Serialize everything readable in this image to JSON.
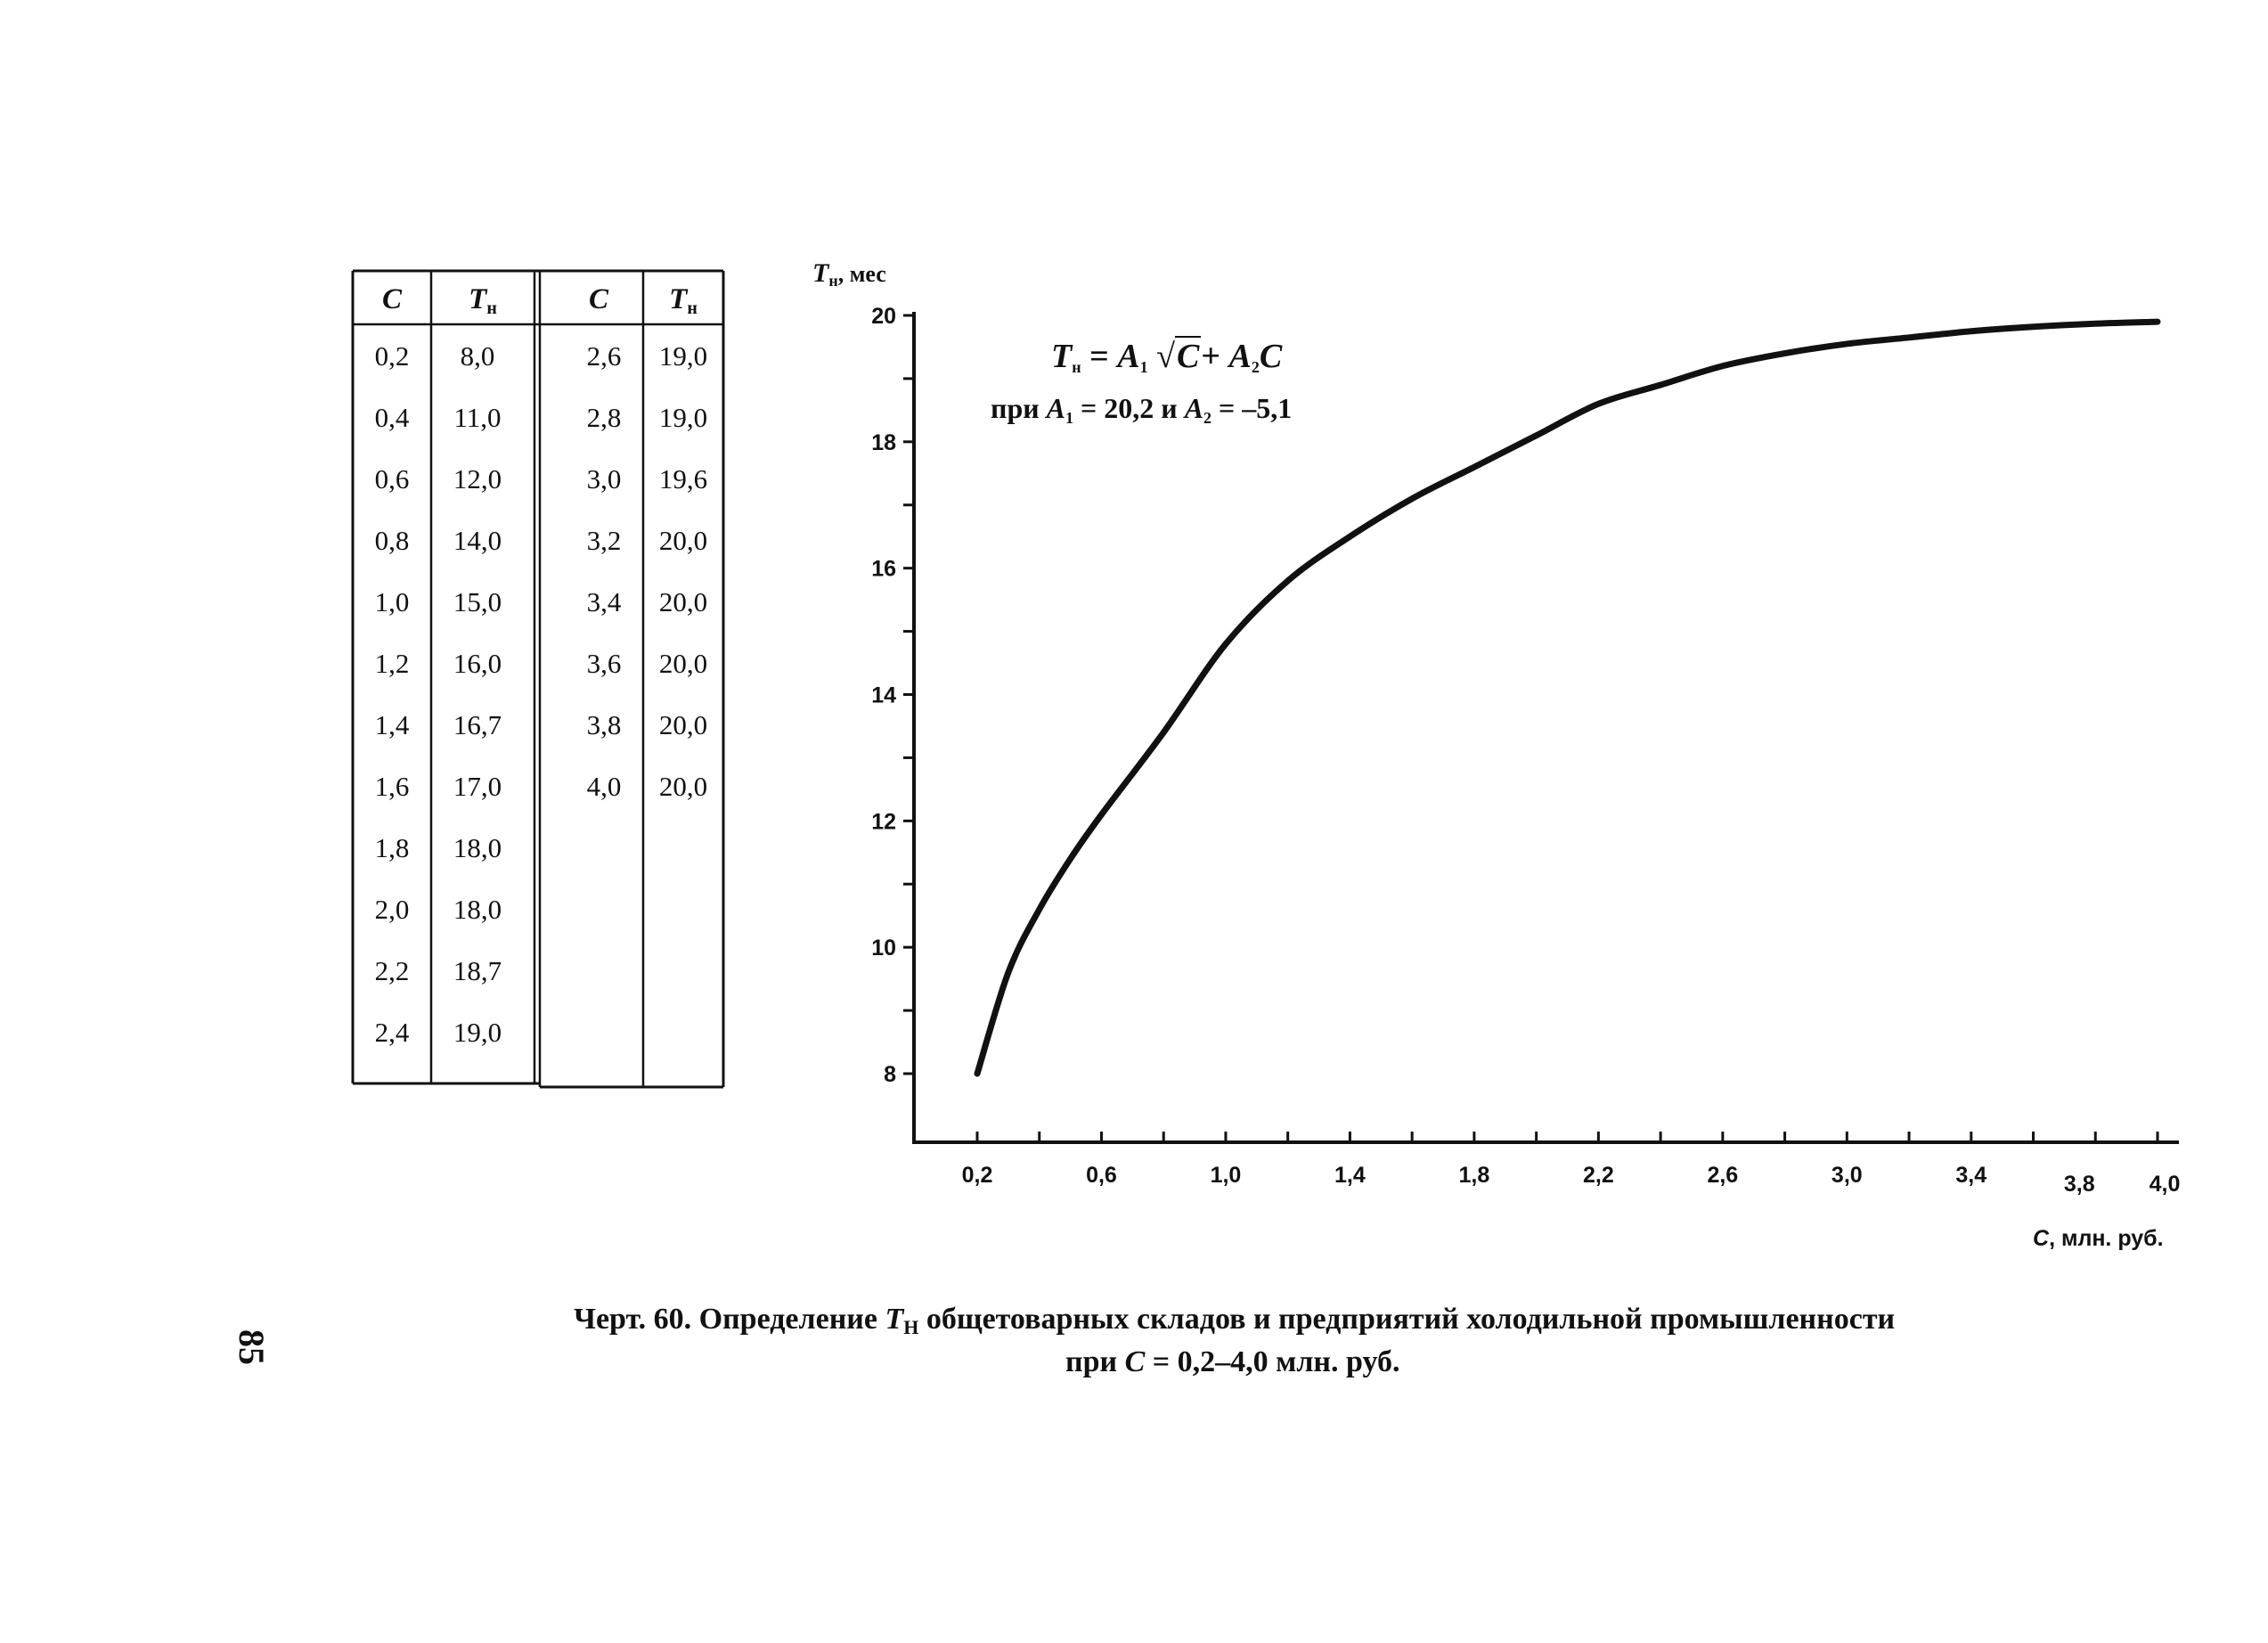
{
  "table": {
    "header": {
      "c": "C",
      "t": "T",
      "t_sub": "н"
    },
    "left_columns": {
      "c": [
        "0,2",
        "0,4",
        "0,6",
        "0,8",
        "1,0",
        "1,2",
        "1,4",
        "1,6",
        "1,8",
        "2,0",
        "2,2",
        "2,4"
      ],
      "t": [
        "8,0",
        "11,0",
        "12,0",
        "14,0",
        "15,0",
        "16,0",
        "16,7",
        "17,0",
        "18,0",
        "18,0",
        "18,7",
        "19,0"
      ]
    },
    "right_columns": {
      "c": [
        "2,6",
        "2,8",
        "3,0",
        "3,2",
        "3,4",
        "3,6",
        "3,8",
        "4,0"
      ],
      "t": [
        "19,0",
        "19,0",
        "19,6",
        "20,0",
        "20,0",
        "20,0",
        "20,0",
        "20,0"
      ]
    }
  },
  "formula": {
    "line1_lhs": "T",
    "line1_lhs_sub": "н",
    "eq": "=",
    "a1": "A",
    "a1_sub": "1",
    "sqrt_arg": "C",
    "plus": "+",
    "a2": "A",
    "a2_sub": "2",
    "c": "C",
    "line2_pri": "при",
    "line2_a1": "A",
    "line2_a1_sub": "1",
    "line2_a1_val": "= 20,2",
    "line2_and": "и",
    "line2_a2": "A",
    "line2_a2_sub": "2",
    "line2_a2_val": "= –5,1"
  },
  "caption": {
    "part1": "Черт. 60. Определение",
    "t": "T",
    "t_sub": "Н",
    "part2": "общетоварных складов и предприятий холодильной промышленности",
    "line2_pri": "при",
    "line2_c": "C",
    "line2_rest": "= 0,2–4,0 млн. руб."
  },
  "page_number": "85",
  "chart_data": {
    "type": "line",
    "title": "",
    "ylabel": {
      "symbol": "T",
      "sub": "н",
      "unit": ", мес"
    },
    "xlabel": {
      "symbol": "C",
      "unit": ", млн. руб."
    },
    "xlim": [
      0,
      4.0
    ],
    "ylim": [
      7,
      20
    ],
    "y_ticks": [
      "8",
      "10",
      "12",
      "14",
      "16",
      "18",
      "20"
    ],
    "x_tick_labels": [
      "0,2",
      "0,6",
      "1,0",
      "1,4",
      "1,8",
      "2,2",
      "2,6",
      "3,0",
      "3,4",
      "3,8",
      "4,0"
    ],
    "x_tick_values": [
      0.2,
      0.6,
      1.0,
      1.4,
      1.8,
      2.2,
      2.6,
      3.0,
      3.4,
      3.8,
      4.0
    ],
    "x_minor_ticks": [
      0.2,
      0.4,
      0.6,
      0.8,
      1.0,
      1.2,
      1.4,
      1.6,
      1.8,
      2.0,
      2.2,
      2.4,
      2.6,
      2.8,
      3.0,
      3.2,
      3.4,
      3.6,
      3.8,
      4.0
    ],
    "y_minor_ticks": [
      8,
      9,
      10,
      11,
      12,
      13,
      14,
      15,
      16,
      17,
      18,
      19,
      20
    ],
    "x": [
      0.2,
      0.3,
      0.4,
      0.5,
      0.6,
      0.8,
      1.0,
      1.2,
      1.4,
      1.6,
      1.8,
      2.0,
      2.2,
      2.4,
      2.6,
      2.8,
      3.0,
      3.2,
      3.4,
      3.6,
      3.8,
      4.0
    ],
    "y": [
      8.0,
      9.6,
      10.6,
      11.4,
      12.1,
      13.4,
      14.8,
      15.8,
      16.5,
      17.1,
      17.6,
      18.1,
      18.6,
      18.9,
      19.2,
      19.4,
      19.55,
      19.65,
      19.75,
      19.82,
      19.87,
      19.9
    ],
    "grid": false,
    "legend": "none"
  }
}
